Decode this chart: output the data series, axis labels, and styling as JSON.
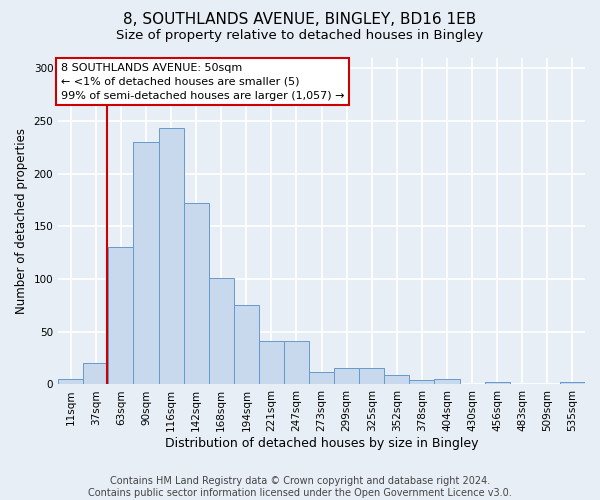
{
  "title1": "8, SOUTHLANDS AVENUE, BINGLEY, BD16 1EB",
  "title2": "Size of property relative to detached houses in Bingley",
  "xlabel": "Distribution of detached houses by size in Bingley",
  "ylabel": "Number of detached properties",
  "bar_color": "#c8d9ee",
  "bar_edge_color": "#6699cc",
  "categories": [
    "11sqm",
    "37sqm",
    "63sqm",
    "90sqm",
    "116sqm",
    "142sqm",
    "168sqm",
    "194sqm",
    "221sqm",
    "247sqm",
    "273sqm",
    "299sqm",
    "325sqm",
    "352sqm",
    "378sqm",
    "404sqm",
    "430sqm",
    "456sqm",
    "483sqm",
    "509sqm",
    "535sqm"
  ],
  "values": [
    5,
    20,
    130,
    230,
    243,
    172,
    101,
    75,
    41,
    41,
    12,
    16,
    16,
    9,
    4,
    5,
    0,
    2,
    0,
    0,
    2
  ],
  "ylim": [
    0,
    310
  ],
  "annotation_line1": "8 SOUTHLANDS AVENUE: 50sqm",
  "annotation_line2": "← <1% of detached houses are smaller (5)",
  "annotation_line3": "99% of semi-detached houses are larger (1,057) →",
  "vline_x": 1.45,
  "vline_color": "#cc0000",
  "annotation_box_color": "#ffffff",
  "annotation_box_edge": "#cc0000",
  "footer_text": "Contains HM Land Registry data © Crown copyright and database right 2024.\nContains public sector information licensed under the Open Government Licence v3.0.",
  "background_color": "#e8eef5",
  "plot_background_color": "#e8eef5",
  "grid_color": "#ffffff",
  "title1_fontsize": 11,
  "title2_fontsize": 9.5,
  "xlabel_fontsize": 9,
  "ylabel_fontsize": 8.5,
  "tick_fontsize": 7.5,
  "annotation_fontsize": 8,
  "footer_fontsize": 7
}
